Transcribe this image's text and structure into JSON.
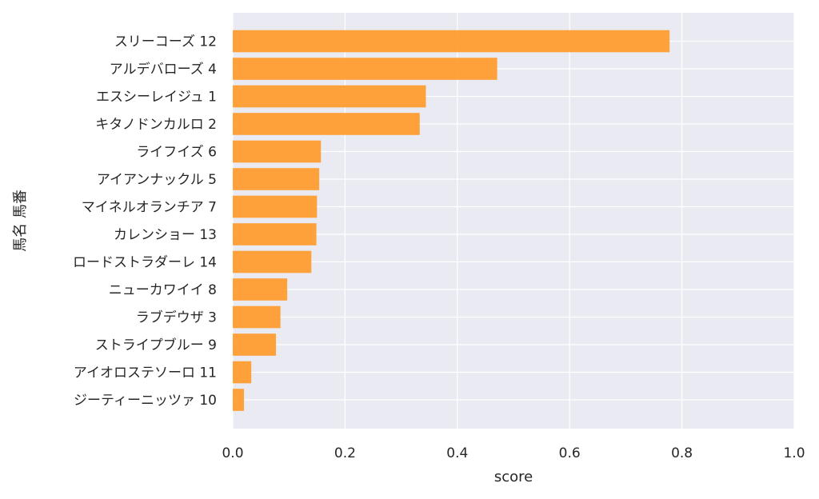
{
  "chart_data": {
    "type": "bar",
    "orientation": "horizontal",
    "categories": [
      "スリーコーズ 12",
      "アルデバローズ 4",
      "エスシーレイジュ 1",
      "キタノドンカルロ 2",
      "ライフイズ 6",
      "アイアンナックル 5",
      "マイネルオランチア 7",
      "カレンショー 13",
      "ロードストラダーレ 14",
      "ニューカワイイ 8",
      "ラブデウザ 3",
      "ストライプブルー 9",
      "アイオロステソーロ 11",
      "ジーティーニッツァ 10"
    ],
    "values": [
      0.778,
      0.471,
      0.344,
      0.333,
      0.157,
      0.154,
      0.15,
      0.149,
      0.14,
      0.097,
      0.085,
      0.077,
      0.033,
      0.02
    ],
    "xlabel": "score",
    "ylabel": "馬名 馬番",
    "xlim": [
      0,
      1.0
    ],
    "xticks": [
      "0.0",
      "0.2",
      "0.4",
      "0.6",
      "0.8",
      "1.0"
    ],
    "grid": true,
    "colors": {
      "bar": "#ff9a2a",
      "plot_bg": "#eaeaf2",
      "grid": "#ffffff"
    }
  }
}
